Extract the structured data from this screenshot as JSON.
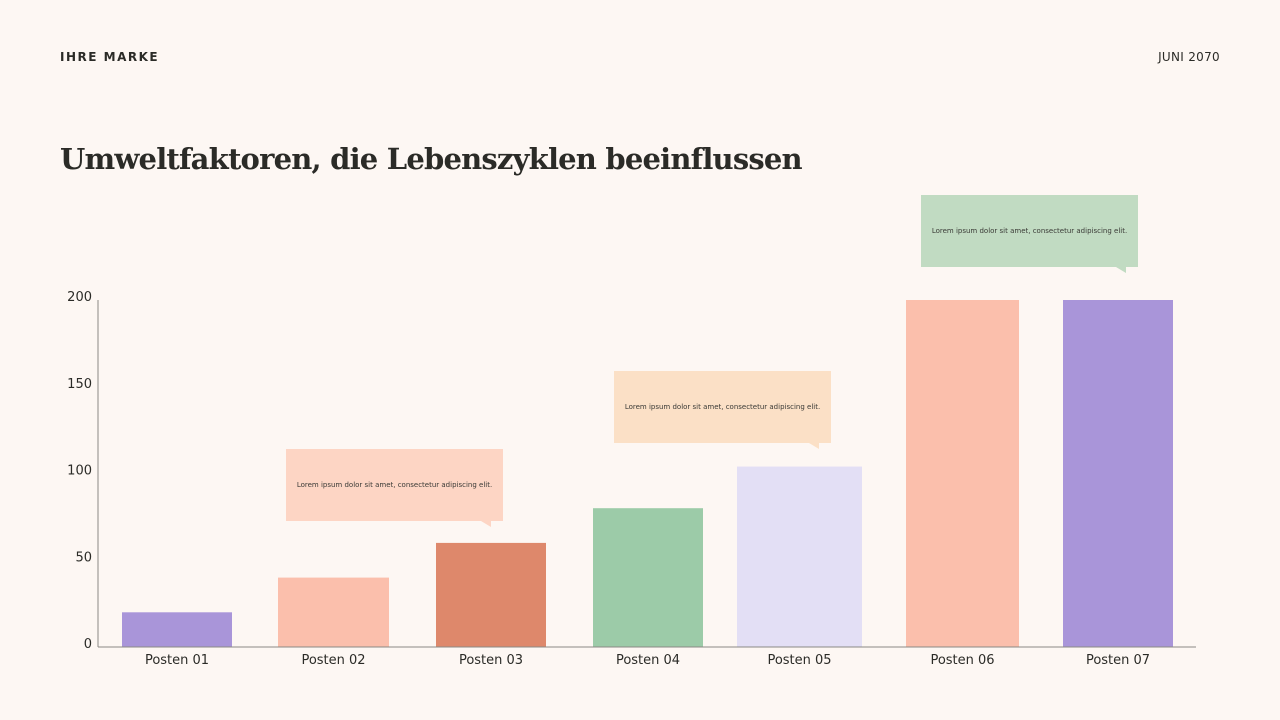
{
  "header": {
    "brand": "IHRE MARKE",
    "date": "JUNI 2070"
  },
  "title": "Umweltfaktoren, die Lebenszyklen beeinflussen",
  "chart_data": {
    "type": "bar",
    "categories": [
      "Posten 01",
      "Posten 02",
      "Posten 03",
      "Posten 04",
      "Posten 05",
      "Posten 06",
      "Posten 07"
    ],
    "values": [
      20,
      40,
      60,
      80,
      104,
      200,
      200
    ],
    "colors": [
      "#a995d9",
      "#fbbfac",
      "#de886b",
      "#9ccba8",
      "#e3dff5",
      "#fbbfac",
      "#a995d9"
    ],
    "ylim": [
      0,
      200
    ],
    "yticks": [
      0,
      50,
      100,
      150,
      200
    ],
    "grid": false,
    "annotations": [
      {
        "bar": "Posten 02",
        "text": "Lorem ipsum dolor sit amet, consectetur adipiscing elit.",
        "color": "#fdd5c4"
      },
      {
        "bar": "Posten 05",
        "text": "Lorem ipsum dolor sit amet, consectetur adipiscing elit.",
        "color": "#fbe0c6"
      },
      {
        "bar": "Posten 06",
        "text": "Lorem ipsum dolor sit amet, consectetur adipiscing elit.",
        "color": "#c1dbc2"
      }
    ]
  }
}
